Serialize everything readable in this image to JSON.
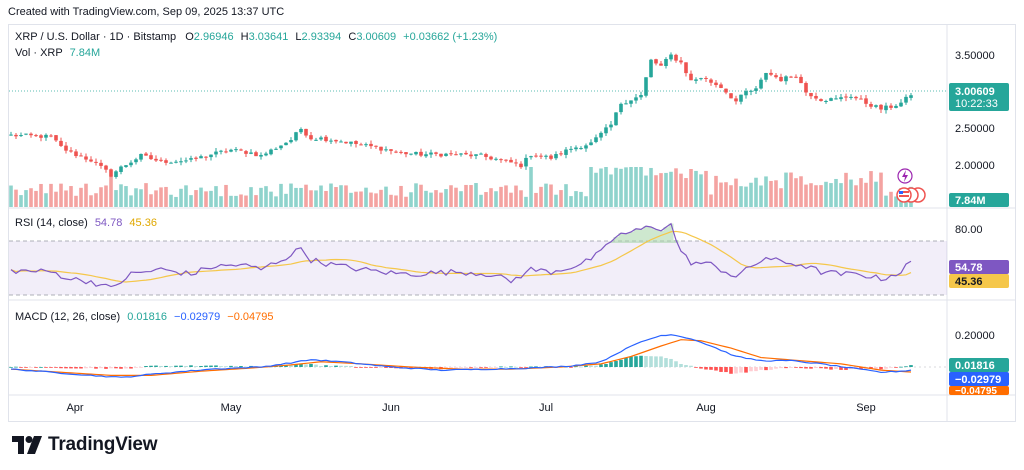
{
  "header": {
    "created_text": "Created with TradingView.com, Sep 09, 2025 13:37 UTC"
  },
  "legend": {
    "symbol": "XRP / U.S. Dollar · 1D · Bitstamp",
    "o_label": "O",
    "o_value": "2.96946",
    "h_label": "H",
    "h_value": "3.03641",
    "l_label": "L",
    "l_value": "2.93394",
    "c_label": "C",
    "c_value": "3.00609",
    "change": "+0.03662 (+1.23%)",
    "vol_label": "Vol · XRP",
    "vol_value": "7.84M",
    "rsi_label": "RSI (14, close)",
    "rsi_value": "54.78",
    "rsi_ma_value": "45.36",
    "macd_label": "MACD (12, 26, close)",
    "macd_hist": "0.01816",
    "macd_line": "−0.02979",
    "macd_signal": "−0.04795"
  },
  "price_axis": {
    "ticks": [
      "3.50000",
      "2.50000",
      "2.00000"
    ],
    "last_price": "3.00609",
    "countdown": "10:22:33",
    "volume_badge": "7.84M"
  },
  "rsi_axis": {
    "ticks": [
      "80.00"
    ],
    "rsi_badge": "54.78",
    "ma_badge": "45.36"
  },
  "macd_axis": {
    "ticks": [
      "0.20000"
    ],
    "hist_badge": "0.01816",
    "macd_badge": "−0.02979",
    "signal_badge": "−0.04795"
  },
  "time_axis": {
    "labels": [
      "Apr",
      "May",
      "Jun",
      "Jul",
      "Aug",
      "Sep"
    ]
  },
  "footer": {
    "brand": "TradingView"
  },
  "colors": {
    "up": "#26a69a",
    "down": "#ef5350",
    "vol_up": "#8fd3cc",
    "vol_down": "#f4a3a1",
    "rsi": "#7e57c2",
    "rsi_ma": "#f5c74a",
    "macd": "#2962ff",
    "signal": "#ff6d00",
    "hist_up": "#26a69a",
    "hist_up_weak": "#b2dfdb",
    "hist_down": "#ff5252",
    "hist_down_weak": "#ffcdd2"
  },
  "chart_data": [
    {
      "type": "candlestick",
      "title": "XRP / U.S. Dollar · 1D · Bitstamp",
      "x_range": [
        "2025-03-22",
        "2025-09-09"
      ],
      "ylim": [
        1.75,
        3.75
      ],
      "volume_unit": "M XRP",
      "keypoints_close": [
        [
          0,
          2.46
        ],
        [
          8,
          2.44
        ],
        [
          10,
          2.3
        ],
        [
          12,
          2.22
        ],
        [
          16,
          2.12
        ],
        [
          20,
          1.92
        ],
        [
          22,
          2.02
        ],
        [
          26,
          2.18
        ],
        [
          30,
          2.1
        ],
        [
          36,
          2.12
        ],
        [
          40,
          2.2
        ],
        [
          44,
          2.26
        ],
        [
          48,
          2.22
        ],
        [
          50,
          2.18
        ],
        [
          56,
          2.4
        ],
        [
          58,
          2.55
        ],
        [
          60,
          2.42
        ],
        [
          62,
          2.42
        ],
        [
          66,
          2.38
        ],
        [
          70,
          2.33
        ],
        [
          74,
          2.28
        ],
        [
          78,
          2.22
        ],
        [
          82,
          2.2
        ],
        [
          88,
          2.2
        ],
        [
          94,
          2.18
        ],
        [
          98,
          2.12
        ],
        [
          102,
          2.05
        ],
        [
          104,
          2.2
        ],
        [
          108,
          2.15
        ],
        [
          112,
          2.28
        ],
        [
          116,
          2.35
        ],
        [
          120,
          2.6
        ],
        [
          122,
          2.9
        ],
        [
          126,
          3.0
        ],
        [
          128,
          3.48
        ],
        [
          130,
          3.4
        ],
        [
          132,
          3.55
        ],
        [
          134,
          3.45
        ],
        [
          136,
          3.2
        ],
        [
          138,
          3.25
        ],
        [
          142,
          3.12
        ],
        [
          145,
          2.92
        ],
        [
          147,
          3.05
        ],
        [
          149,
          3.08
        ],
        [
          151,
          3.32
        ],
        [
          154,
          3.22
        ],
        [
          157,
          3.28
        ],
        [
          159,
          3.05
        ],
        [
          162,
          2.95
        ],
        [
          165,
          2.95
        ],
        [
          168,
          3.0
        ],
        [
          171,
          2.9
        ],
        [
          174,
          2.82
        ],
        [
          176,
          2.85
        ],
        [
          178,
          2.9
        ],
        [
          180,
          3.01
        ]
      ],
      "last": {
        "open": 2.96946,
        "high": 3.03641,
        "low": 2.93394,
        "close": 3.00609,
        "volume": "7.84M"
      }
    },
    {
      "type": "line",
      "title": "RSI (14, close)",
      "series": [
        {
          "name": "RSI",
          "last": 54.78
        },
        {
          "name": "MA",
          "last": 45.36
        }
      ],
      "band": [
        30,
        70
      ],
      "ylim": [
        20,
        90
      ],
      "keypoints": [
        [
          0,
          47
        ],
        [
          8,
          46
        ],
        [
          12,
          40
        ],
        [
          16,
          38
        ],
        [
          20,
          32
        ],
        [
          24,
          44
        ],
        [
          30,
          48
        ],
        [
          36,
          44
        ],
        [
          40,
          50
        ],
        [
          46,
          52
        ],
        [
          50,
          48
        ],
        [
          56,
          60
        ],
        [
          58,
          66
        ],
        [
          60,
          56
        ],
        [
          64,
          52
        ],
        [
          70,
          48
        ],
        [
          76,
          45
        ],
        [
          80,
          44
        ],
        [
          84,
          45
        ],
        [
          90,
          46
        ],
        [
          96,
          44
        ],
        [
          100,
          38
        ],
        [
          104,
          48
        ],
        [
          108,
          46
        ],
        [
          114,
          52
        ],
        [
          118,
          62
        ],
        [
          121,
          76
        ],
        [
          125,
          80
        ],
        [
          128,
          84
        ],
        [
          130,
          82
        ],
        [
          132,
          85
        ],
        [
          134,
          62
        ],
        [
          136,
          54
        ],
        [
          140,
          52
        ],
        [
          145,
          42
        ],
        [
          148,
          50
        ],
        [
          151,
          58
        ],
        [
          154,
          54
        ],
        [
          158,
          52
        ],
        [
          162,
          46
        ],
        [
          166,
          44
        ],
        [
          170,
          44
        ],
        [
          174,
          40
        ],
        [
          178,
          46
        ],
        [
          180,
          54.78
        ]
      ]
    },
    {
      "type": "line",
      "title": "MACD (12, 26, close)",
      "series": [
        {
          "name": "MACD",
          "last": -0.02979
        },
        {
          "name": "Signal",
          "last": -0.04795
        },
        {
          "name": "Histogram",
          "last": 0.01816
        }
      ],
      "ylim": [
        -0.1,
        0.35
      ],
      "keypoints_macd": [
        [
          0,
          -0.02
        ],
        [
          8,
          -0.05
        ],
        [
          16,
          -0.08
        ],
        [
          22,
          -0.1
        ],
        [
          30,
          -0.06
        ],
        [
          40,
          -0.02
        ],
        [
          50,
          0.0
        ],
        [
          56,
          0.04
        ],
        [
          60,
          0.07
        ],
        [
          66,
          0.05
        ],
        [
          76,
          0.0
        ],
        [
          86,
          -0.03
        ],
        [
          96,
          -0.02
        ],
        [
          104,
          -0.01
        ],
        [
          112,
          0.01
        ],
        [
          118,
          0.05
        ],
        [
          122,
          0.15
        ],
        [
          126,
          0.24
        ],
        [
          130,
          0.3
        ],
        [
          132,
          0.31
        ],
        [
          136,
          0.27
        ],
        [
          140,
          0.2
        ],
        [
          145,
          0.1
        ],
        [
          150,
          0.06
        ],
        [
          156,
          0.06
        ],
        [
          162,
          0.03
        ],
        [
          168,
          -0.01
        ],
        [
          174,
          -0.05
        ],
        [
          178,
          -0.04
        ],
        [
          180,
          -0.02979
        ]
      ],
      "keypoints_signal": [
        [
          0,
          -0.02
        ],
        [
          10,
          -0.05
        ],
        [
          20,
          -0.08
        ],
        [
          28,
          -0.08
        ],
        [
          38,
          -0.04
        ],
        [
          48,
          -0.01
        ],
        [
          56,
          0.02
        ],
        [
          62,
          0.05
        ],
        [
          70,
          0.03
        ],
        [
          80,
          0.0
        ],
        [
          90,
          -0.02
        ],
        [
          100,
          -0.02
        ],
        [
          110,
          0.0
        ],
        [
          118,
          0.03
        ],
        [
          124,
          0.1
        ],
        [
          130,
          0.2
        ],
        [
          134,
          0.26
        ],
        [
          138,
          0.25
        ],
        [
          144,
          0.18
        ],
        [
          150,
          0.09
        ],
        [
          158,
          0.06
        ],
        [
          166,
          0.03
        ],
        [
          174,
          -0.03
        ],
        [
          180,
          -0.04795
        ]
      ]
    }
  ]
}
